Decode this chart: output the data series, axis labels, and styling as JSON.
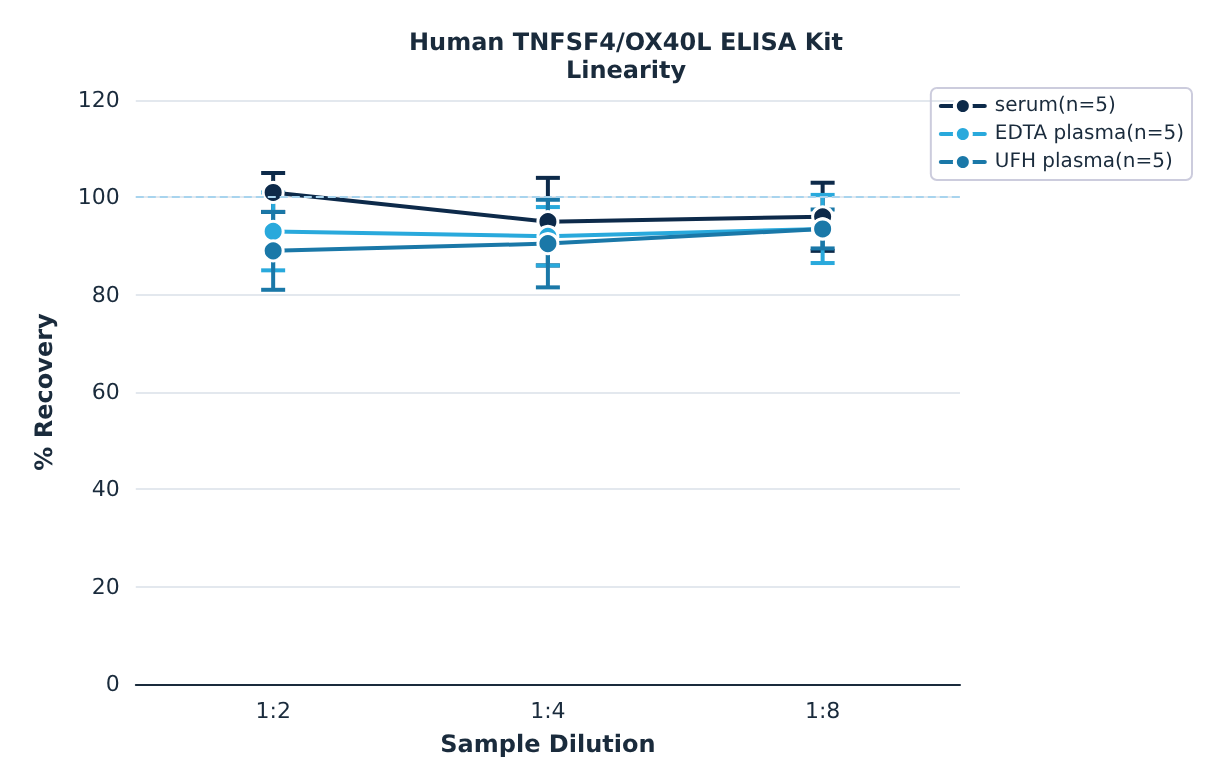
{
  "chart_data": {
    "type": "line",
    "title": "Human TNFSF4/OX40L ELISA Kit",
    "subtitle": "Linearity",
    "xlabel": "Sample Dilution",
    "ylabel": "% Recovery",
    "categories": [
      "1:2",
      "1:4",
      "1:8"
    ],
    "series": [
      {
        "name": "serum(n=5)",
        "color": "#0d2a4a",
        "values": [
          101,
          95,
          96
        ],
        "errors": [
          4,
          9,
          7
        ]
      },
      {
        "name": "EDTA plasma(n=5)",
        "color": "#29a9dc",
        "values": [
          93,
          92,
          93.5
        ],
        "errors": [
          8,
          6,
          7
        ]
      },
      {
        "name": "UFH plasma(n=5)",
        "color": "#1a78a8",
        "values": [
          89,
          90.5,
          93.5
        ],
        "errors": [
          8,
          9,
          4
        ]
      }
    ],
    "ylim": [
      0,
      120
    ],
    "yticks": [
      0,
      20,
      40,
      60,
      80,
      100,
      120
    ],
    "grid": "y",
    "legend": "top right",
    "marker": "circle",
    "line_style": "solid",
    "ref_lines": [
      {
        "axis": "y",
        "value": 100,
        "color": "#a8d4ee",
        "line_style": "dashed"
      }
    ]
  }
}
